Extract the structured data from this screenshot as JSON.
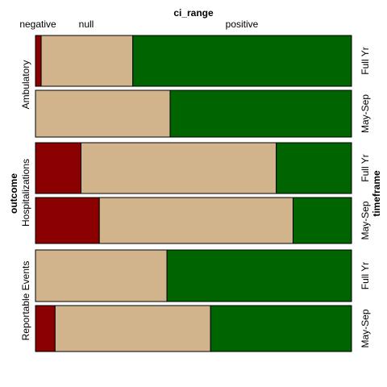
{
  "chart_data": {
    "type": "bar",
    "orientation": "horizontal",
    "stacked": "proportional",
    "legend_title": "ci_range",
    "legend_placement": "top",
    "legend_style": "category labels above segments",
    "categories_legend": [
      "negative",
      "null",
      "positive"
    ],
    "colors": {
      "negative": "#8b0000",
      "null": "#d2b48c",
      "positive": "#006400"
    },
    "facet_row_label": "outcome",
    "facet_col_label": "timeframe",
    "outcome_labels": [
      "Ambulatory",
      "Hospitalizations",
      "Reportable Events"
    ],
    "timeframe_labels": [
      "Full Yr",
      "May-Sep"
    ],
    "bars": [
      {
        "outcome": "Ambulatory",
        "timeframe": "Full Yr",
        "negative": 0.018,
        "null": 0.29,
        "positive": 0.692
      },
      {
        "outcome": "Ambulatory",
        "timeframe": "May-Sep",
        "negative": 0.0,
        "null": 0.426,
        "positive": 0.574
      },
      {
        "outcome": "Hospitalizations",
        "timeframe": "Full Yr",
        "negative": 0.144,
        "null": 0.618,
        "positive": 0.238
      },
      {
        "outcome": "Hospitalizations",
        "timeframe": "May-Sep",
        "negative": 0.202,
        "null": 0.613,
        "positive": 0.185
      },
      {
        "outcome": "Reportable Events",
        "timeframe": "Full Yr",
        "negative": 0.0,
        "null": 0.416,
        "positive": 0.584
      },
      {
        "outcome": "Reportable Events",
        "timeframe": "May-Sep",
        "negative": 0.062,
        "null": 0.492,
        "positive": 0.446
      }
    ],
    "xlim": [
      0,
      1
    ]
  }
}
